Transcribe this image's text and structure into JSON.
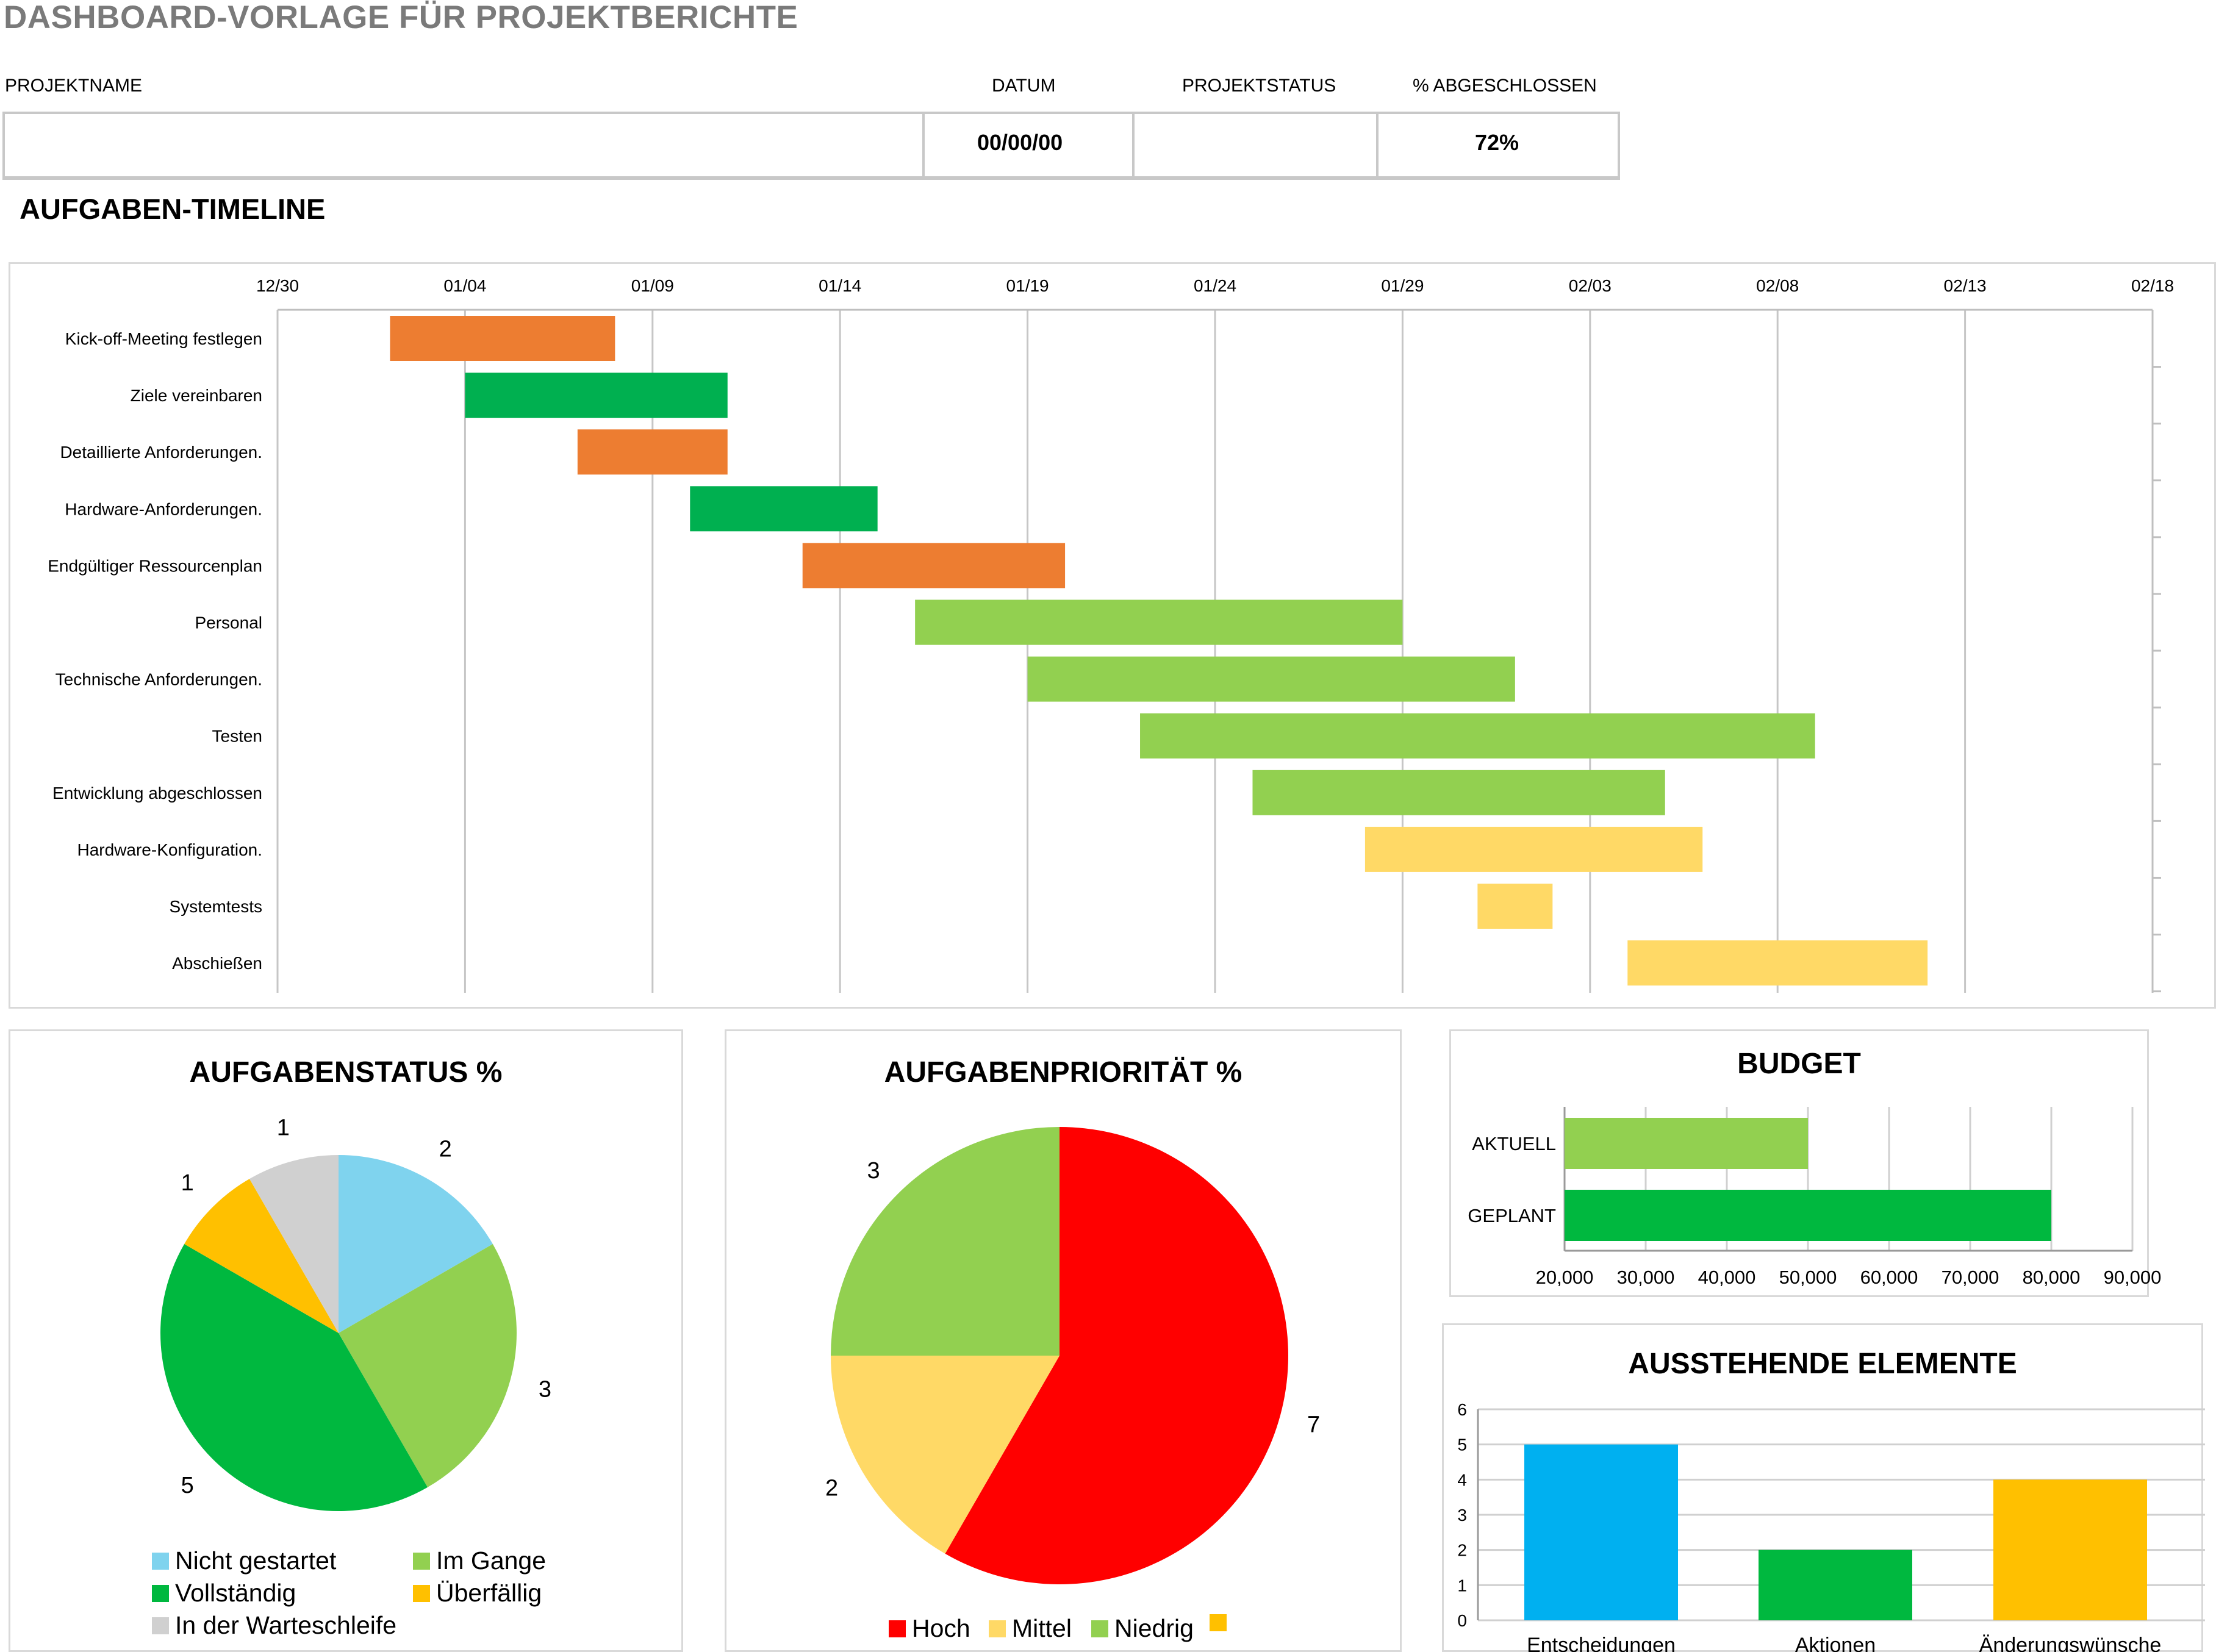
{
  "page_title": "DASHBOARD-VORLAGE FÜR PROJEKTBERICHTE",
  "header": {
    "labels": {
      "project_name": "PROJEKTNAME",
      "date": "DATUM",
      "status": "PROJEKTSTATUS",
      "percent": "% ABGESCHLOSSEN"
    },
    "values": {
      "project_name": "",
      "date": "00/00/00",
      "status": "",
      "percent": "72%"
    }
  },
  "timeline_title": "AUFGABEN-TIMELINE",
  "colors": {
    "orange": "#ED7D31",
    "green": "#00B050",
    "lightgreen": "#92D050",
    "yellow": "#FFD966",
    "lightblue": "#7FD3EE",
    "gold": "#FFC000",
    "grey": "#D0D0D0",
    "red": "#FF0000",
    "paleyellow": "#FFD966",
    "blue": "#00B0F0"
  },
  "chart_data": [
    {
      "type": "bar",
      "orientation": "horizontal-gantt",
      "x_ticks": [
        "12/30",
        "01/04",
        "01/09",
        "01/14",
        "01/19",
        "01/24",
        "01/29",
        "02/03",
        "02/08",
        "02/13",
        "02/18"
      ],
      "tasks": [
        {
          "name": "Kick-off-Meeting festlegen",
          "start": "01/02",
          "end": "01/08",
          "color": "#ED7D31"
        },
        {
          "name": "Ziele vereinbaren",
          "start": "01/04",
          "end": "01/11",
          "color": "#00B050"
        },
        {
          "name": "Detaillierte Anforderungen.",
          "start": "01/07",
          "end": "01/11",
          "color": "#ED7D31"
        },
        {
          "name": "Hardware-Anforderungen.",
          "start": "01/10",
          "end": "01/15",
          "color": "#00B050"
        },
        {
          "name": "Endgültiger Ressourcenplan",
          "start": "01/13",
          "end": "01/20",
          "color": "#ED7D31"
        },
        {
          "name": "Personal",
          "start": "01/16",
          "end": "01/29",
          "color": "#92D050"
        },
        {
          "name": "Technische Anforderungen.",
          "start": "01/19",
          "end": "02/01",
          "color": "#92D050"
        },
        {
          "name": "Testen",
          "start": "01/22",
          "end": "02/09",
          "color": "#92D050"
        },
        {
          "name": "Entwicklung abgeschlossen",
          "start": "01/25",
          "end": "02/05",
          "color": "#92D050"
        },
        {
          "name": "Hardware-Konfiguration.",
          "start": "01/28",
          "end": "02/06",
          "color": "#FFD966"
        },
        {
          "name": "Systemtests",
          "start": "01/31",
          "end": "02/02",
          "color": "#FFD966"
        },
        {
          "name": "Abschießen",
          "start": "02/04",
          "end": "02/12",
          "color": "#FFD966"
        }
      ]
    },
    {
      "type": "pie",
      "title": "AUFGABENSTATUS %",
      "slices": [
        {
          "name": "Nicht gestartet",
          "value": 2,
          "color": "#7FD3EE"
        },
        {
          "name": "Im Gange",
          "value": 3,
          "color": "#92D050"
        },
        {
          "name": "Vollständig",
          "value": 5,
          "color": "#00B83F"
        },
        {
          "name": "Überfällig",
          "value": 1,
          "color": "#FFC000"
        },
        {
          "name": "In der Warteschleife",
          "value": 1,
          "color": "#D0D0D0"
        }
      ],
      "legend": "bottom"
    },
    {
      "type": "pie",
      "title": "AUFGABENPRIORITÄT %",
      "slices": [
        {
          "name": "Hoch",
          "value": 7,
          "color": "#FF0000"
        },
        {
          "name": "Mittel",
          "value": 2,
          "color": "#FFD966"
        },
        {
          "name": "Niedrig",
          "value": 3,
          "color": "#92D050"
        },
        {
          "name": "",
          "value": 0,
          "color": "#FFC000"
        }
      ],
      "legend": "bottom"
    },
    {
      "type": "bar",
      "orientation": "horizontal",
      "title": "BUDGET",
      "categories": [
        "AKTUELL",
        "GEPLANT"
      ],
      "values": [
        50000,
        80000
      ],
      "colors": [
        "#92D050",
        "#00B83F"
      ],
      "xlim": [
        20000,
        90000
      ],
      "x_ticks": [
        "20,000",
        "30,000",
        "40,000",
        "50,000",
        "60,000",
        "70,000",
        "80,000",
        "90,000"
      ]
    },
    {
      "type": "bar",
      "title": "AUSSTEHENDE ELEMENTE",
      "categories": [
        "Entscheidungen",
        "Aktionen",
        "Änderungswünsche"
      ],
      "values": [
        5,
        2,
        4
      ],
      "colors": [
        "#00B0F0",
        "#00B83F",
        "#FFC000"
      ],
      "ylim": [
        0,
        6
      ],
      "y_ticks": [
        "0",
        "1",
        "2",
        "3",
        "4",
        "5",
        "6"
      ]
    }
  ]
}
